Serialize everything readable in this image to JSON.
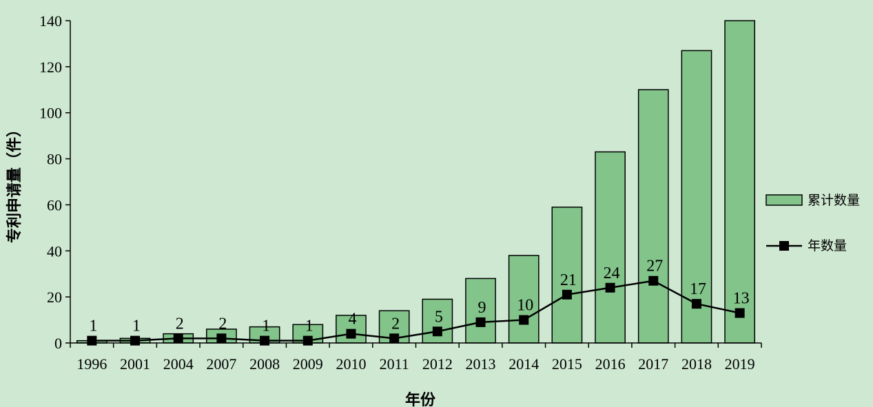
{
  "chart_data": {
    "type": "bar",
    "categories": [
      "1996",
      "2001",
      "2004",
      "2007",
      "2008",
      "2009",
      "2010",
      "2011",
      "2012",
      "2013",
      "2014",
      "2015",
      "2016",
      "2017",
      "2018",
      "2019"
    ],
    "series": [
      {
        "name": "累计数量",
        "kind": "bar",
        "color": "#82c48a",
        "values": [
          1,
          2,
          4,
          6,
          7,
          8,
          12,
          14,
          19,
          28,
          38,
          59,
          83,
          110,
          127,
          140
        ]
      },
      {
        "name": "年数量",
        "kind": "line",
        "color": "#000000",
        "values": [
          1,
          1,
          2,
          2,
          1,
          1,
          4,
          2,
          5,
          9,
          10,
          21,
          24,
          27,
          17,
          13
        ],
        "labels": [
          "1",
          "1",
          "2",
          "2",
          "1",
          "1",
          "4",
          "2",
          "5",
          "9",
          "10",
          "21",
          "24",
          "27",
          "17",
          "13"
        ]
      }
    ],
    "title": "",
    "xlabel": "年份",
    "ylabel": "专利申请量（件）",
    "ylim": [
      0,
      140
    ],
    "yticks": [
      "0",
      "20",
      "40",
      "60",
      "80",
      "100",
      "120",
      "140"
    ],
    "grid": false,
    "legend": "right"
  }
}
